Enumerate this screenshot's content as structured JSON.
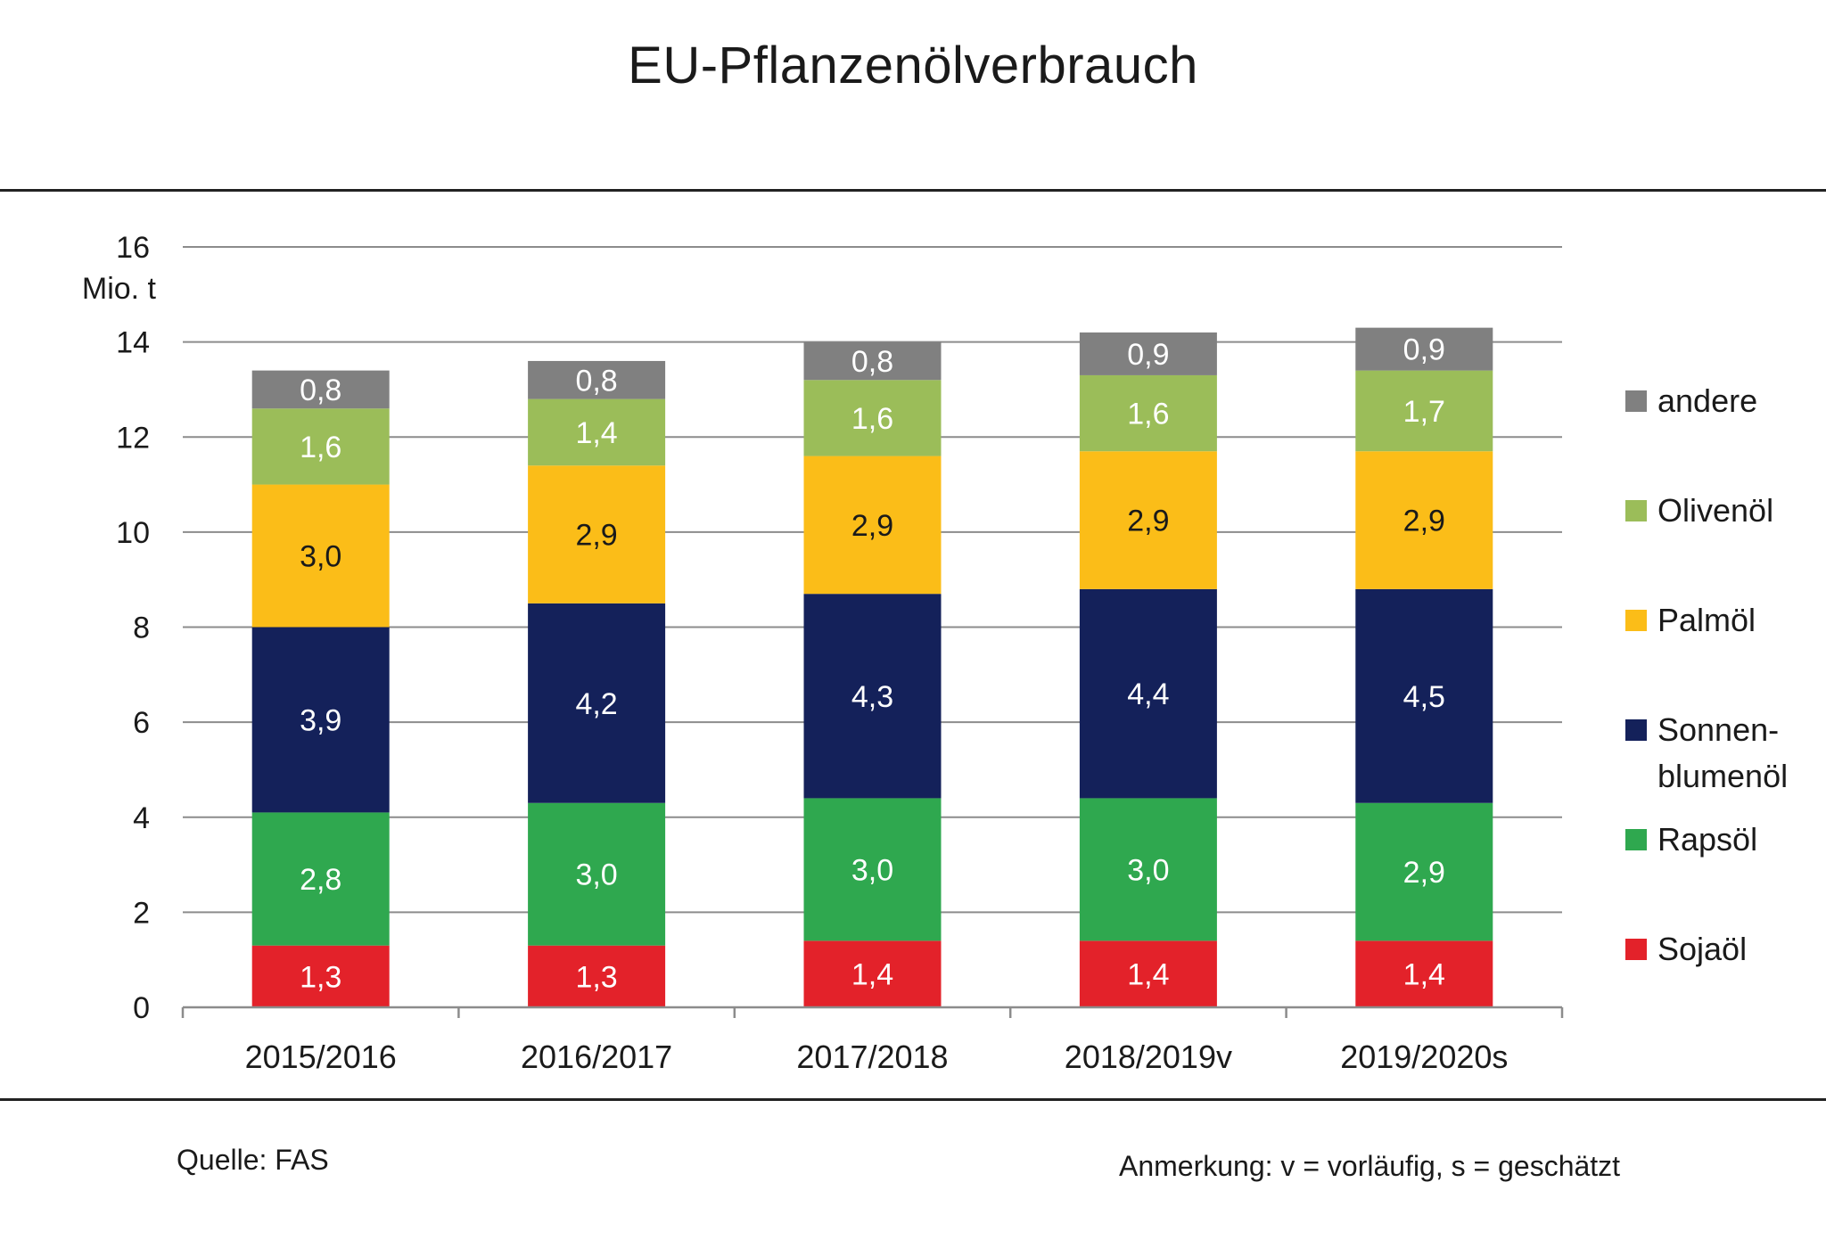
{
  "page": {
    "title": "EU-Pflanzenölverbrauch"
  },
  "chart_data": {
    "type": "bar",
    "stacked": true,
    "title": "EU-Pflanzenölverbrauch",
    "ylabel": "Mio. t",
    "xlabel": "",
    "ylim": [
      0,
      16
    ],
    "yticks": [
      0,
      2,
      4,
      6,
      8,
      10,
      12,
      14,
      16
    ],
    "grid": true,
    "legend_position": "right",
    "categories": [
      "2015/2016",
      "2016/2017",
      "2017/2018",
      "2018/2019v",
      "2019/2020s"
    ],
    "series": [
      {
        "name": "Sojaöl",
        "color": "#e3222a",
        "values": [
          1.3,
          1.3,
          1.4,
          1.4,
          1.4
        ],
        "labels": [
          "1,3",
          "1,3",
          "1,4",
          "1,4",
          "1,4"
        ]
      },
      {
        "name": "Rapsöl",
        "color": "#2fa84f",
        "values": [
          2.8,
          3.0,
          3.0,
          3.0,
          2.9
        ],
        "labels": [
          "2,8",
          "3,0",
          "3,0",
          "3,0",
          "2,9"
        ]
      },
      {
        "name": "Sonnen-\nblumenöl",
        "color": "#14215a",
        "values": [
          3.9,
          4.2,
          4.3,
          4.4,
          4.5
        ],
        "labels": [
          "3,9",
          "4,2",
          "4,3",
          "4,4",
          "4,5"
        ]
      },
      {
        "name": "Palmöl",
        "color": "#fbbd18",
        "values": [
          3.0,
          2.9,
          2.9,
          2.9,
          2.9
        ],
        "labels": [
          "3,0",
          "2,9",
          "2,9",
          "2,9",
          "2,9"
        ]
      },
      {
        "name": "Olivenöl",
        "color": "#9bbd59",
        "values": [
          1.6,
          1.4,
          1.6,
          1.6,
          1.7
        ],
        "labels": [
          "1,6",
          "1,4",
          "1,6",
          "1,6",
          "1,7"
        ]
      },
      {
        "name": "andere",
        "color": "#808080",
        "values": [
          0.8,
          0.8,
          0.8,
          0.9,
          0.9
        ],
        "labels": [
          "0,8",
          "0,8",
          "0,8",
          "0,9",
          "0,9"
        ]
      }
    ],
    "label_colors": {
      "Sojaöl": "#ffffff",
      "Rapsöl": "#ffffff",
      "Sonnen-\nblumenöl": "#ffffff",
      "Palmöl": "#1a1a1a",
      "Olivenöl": "#ffffff",
      "andere": "#ffffff"
    }
  },
  "footer": {
    "source": "Quelle: FAS",
    "note": "Anmerkung: v = vorläufig, s = geschätzt"
  }
}
